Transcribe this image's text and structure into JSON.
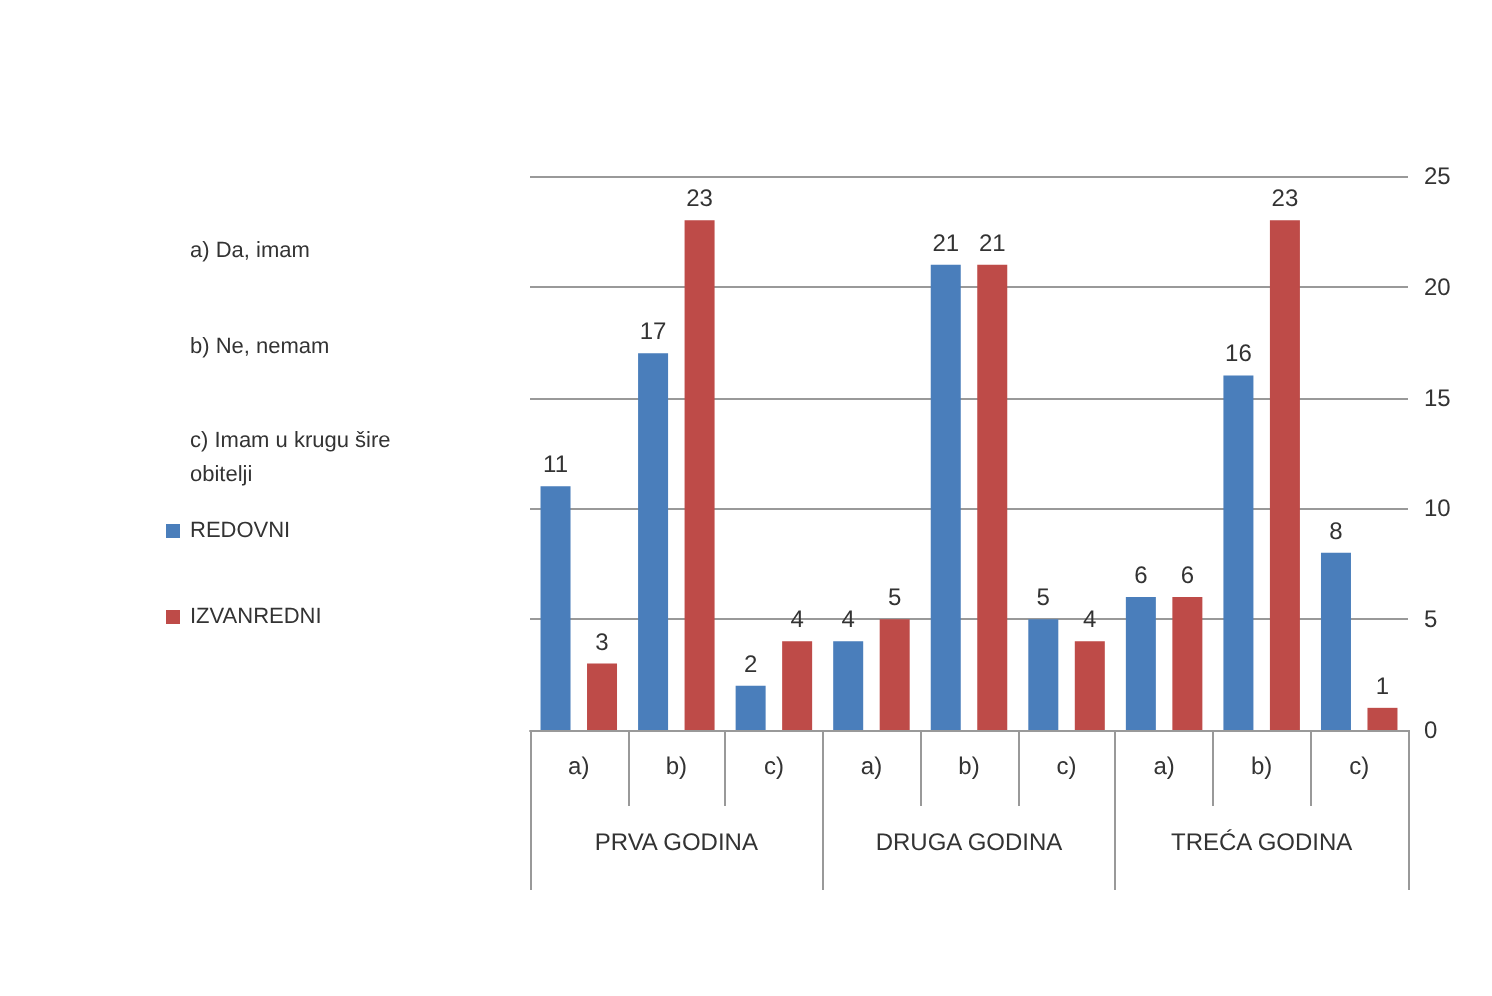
{
  "chart_data": {
    "type": "bar",
    "categories": [
      "a)",
      "b)",
      "c)",
      "a)",
      "b)",
      "c)",
      "a)",
      "b)",
      "c)"
    ],
    "series": [
      {
        "name": "REDOVNI",
        "color": "#4a7ebb",
        "values": [
          11,
          17,
          2,
          4,
          21,
          5,
          6,
          16,
          8
        ]
      },
      {
        "name": "IZVANREDNI",
        "color": "#be4b48",
        "values": [
          3,
          23,
          4,
          5,
          21,
          4,
          6,
          23,
          1
        ]
      }
    ],
    "ylim": [
      0,
      25
    ],
    "yticks": [
      0,
      5,
      10,
      15,
      20,
      25
    ],
    "grid": "y",
    "legend": "left",
    "data_labels": true,
    "annotations": [
      "a) Da, imam",
      "b) Ne, nemam",
      "c) Imam u krugu šire obitelji",
      "PRVA GODINA",
      "DRUGA GODINA",
      "TREĆA GODINA"
    ]
  }
}
